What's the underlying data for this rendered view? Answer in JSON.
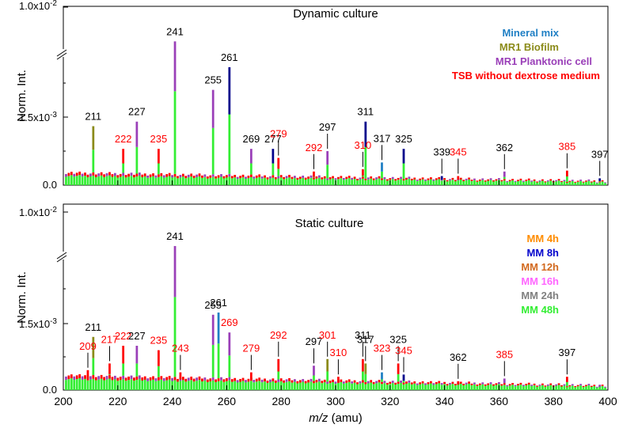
{
  "chart_data": [
    {
      "type": "bar",
      "title": "Dynamic culture",
      "xlabel_italic": "m/z",
      "xlabel_unit": " (amu)",
      "ylabel": "Norm. Int.",
      "xlim": [
        200,
        400
      ],
      "x_ticks": [
        "200",
        "220",
        "240",
        "260",
        "280",
        "300",
        "320",
        "340",
        "360",
        "380",
        "400"
      ],
      "y_ticks": [
        "0.0",
        "1.5x10",
        "1.0x10"
      ],
      "y_tick_exponents": [
        "",
        "-3",
        "-2"
      ],
      "legend": [
        {
          "label": "Mineral mix",
          "color": "#1f7fc4"
        },
        {
          "label": "MR1 Biofilm",
          "color": "#8b8b1a"
        },
        {
          "label": "MR1 Planktonic cell",
          "color": "#9a3fb8"
        },
        {
          "label": "TSB without dextrose medium",
          "color": "#ff0000"
        }
      ],
      "series_colors": [
        "#33ee33",
        "#ff0000",
        "#9a3fb8",
        "#8b8b1a",
        "#1f7fc4",
        "#00008b"
      ],
      "peaks": [
        {
          "mz": 211,
          "height": 0.0013,
          "seg": 3
        },
        {
          "mz": 222,
          "height": 0.0008,
          "seg": 1
        },
        {
          "mz": 227,
          "height": 0.0014,
          "seg": 2
        },
        {
          "mz": 235,
          "height": 0.0008,
          "seg": 1
        },
        {
          "mz": 241,
          "height": 0.00345,
          "seg": 2
        },
        {
          "mz": 255,
          "height": 0.0021,
          "seg": 2
        },
        {
          "mz": 261,
          "height": 0.0026,
          "seg": 5
        },
        {
          "mz": 269,
          "height": 0.0008,
          "seg": 2
        },
        {
          "mz": 277,
          "height": 0.0008,
          "seg": 5
        },
        {
          "mz": 279,
          "height": 0.0006,
          "seg": 1
        },
        {
          "mz": 292,
          "height": 0.0003,
          "seg": 1
        },
        {
          "mz": 297,
          "height": 0.00075,
          "seg": 2
        },
        {
          "mz": 310,
          "height": 0.00035,
          "seg": 1
        },
        {
          "mz": 311,
          "height": 0.0014,
          "seg": 5
        },
        {
          "mz": 317,
          "height": 0.0005,
          "seg": 4
        },
        {
          "mz": 325,
          "height": 0.0008,
          "seg": 5
        },
        {
          "mz": 339,
          "height": 0.0002,
          "seg": 5
        },
        {
          "mz": 345,
          "height": 0.0002,
          "seg": 1
        },
        {
          "mz": 362,
          "height": 0.0003,
          "seg": 2
        },
        {
          "mz": 385,
          "height": 0.00032,
          "seg": 1
        },
        {
          "mz": 397,
          "height": 0.00015,
          "seg": 5
        }
      ],
      "labels": [
        {
          "text": "211",
          "color": "black"
        },
        {
          "text": "222",
          "color": "red"
        },
        {
          "text": "227",
          "color": "black"
        },
        {
          "text": "235",
          "color": "red"
        },
        {
          "text": "241",
          "color": "black"
        },
        {
          "text": "255",
          "color": "black"
        },
        {
          "text": "261",
          "color": "black"
        },
        {
          "text": "269",
          "color": "black"
        },
        {
          "text": "277",
          "color": "black"
        },
        {
          "text": "279",
          "color": "red"
        },
        {
          "text": "292",
          "color": "red"
        },
        {
          "text": "297",
          "color": "black"
        },
        {
          "text": "310",
          "color": "red"
        },
        {
          "text": "311",
          "color": "black"
        },
        {
          "text": "317",
          "color": "black"
        },
        {
          "text": "325",
          "color": "black"
        },
        {
          "text": "339",
          "color": "black"
        },
        {
          "text": "345",
          "color": "red"
        },
        {
          "text": "362",
          "color": "black"
        },
        {
          "text": "385",
          "color": "red"
        },
        {
          "text": "397",
          "color": "black"
        }
      ]
    },
    {
      "type": "bar",
      "title": "Static culture",
      "xlabel_italic": "m/z",
      "xlabel_unit": " (amu)",
      "ylabel": "Norm. Int.",
      "xlim": [
        200,
        400
      ],
      "x_ticks": [
        "200",
        "220",
        "240",
        "260",
        "280",
        "300",
        "320",
        "340",
        "360",
        "380",
        "400"
      ],
      "y_ticks": [
        "0.0",
        "1.5x10",
        "1.0x10"
      ],
      "y_tick_exponents": [
        "",
        "-3",
        "-2"
      ],
      "legend": [
        {
          "label": "MM 4h",
          "color": "#ff8c00"
        },
        {
          "label": "MM 8h",
          "color": "#0000cc"
        },
        {
          "label": "MM 12h",
          "color": "#d2691e"
        },
        {
          "label": "MM 16h",
          "color": "#ff66ff"
        },
        {
          "label": "MM 24h",
          "color": "#808080"
        },
        {
          "label": "MM 48h",
          "color": "#33ee33"
        }
      ],
      "series_colors": [
        "#33ee33",
        "#ff0000",
        "#9a3fb8",
        "#8b8b1a",
        "#1f7fc4",
        "#00008b"
      ],
      "peaks": [
        {
          "mz": 209,
          "height": 0.00045,
          "seg": 1
        },
        {
          "mz": 211,
          "height": 0.0012,
          "seg": 3
        },
        {
          "mz": 217,
          "height": 0.0006,
          "seg": 1
        },
        {
          "mz": 222,
          "height": 0.001,
          "seg": 1
        },
        {
          "mz": 227,
          "height": 0.001,
          "seg": 2
        },
        {
          "mz": 235,
          "height": 0.0009,
          "seg": 1
        },
        {
          "mz": 241,
          "height": 0.0035,
          "seg": 2
        },
        {
          "mz": 243,
          "height": 0.0004,
          "seg": 1
        },
        {
          "mz": 255,
          "height": 0.0017,
          "seg": 2
        },
        {
          "mz": 257,
          "height": 0.00175,
          "seg": 4
        },
        {
          "mz": 261,
          "height": 0.0013,
          "seg": 2
        },
        {
          "mz": 269,
          "height": 0.0004,
          "seg": 1
        },
        {
          "mz": 279,
          "height": 0.0007,
          "seg": 1
        },
        {
          "mz": 292,
          "height": 0.00055,
          "seg": 2
        },
        {
          "mz": 297,
          "height": 0.0007,
          "seg": 3
        },
        {
          "mz": 301,
          "height": 0.0003,
          "seg": 1
        },
        {
          "mz": 310,
          "height": 0.0007,
          "seg": 1
        },
        {
          "mz": 311,
          "height": 0.0006,
          "seg": 3
        },
        {
          "mz": 317,
          "height": 0.0004,
          "seg": 4
        },
        {
          "mz": 323,
          "height": 0.0006,
          "seg": 1
        },
        {
          "mz": 325,
          "height": 0.00035,
          "seg": 5
        },
        {
          "mz": 345,
          "height": 0.0002,
          "seg": 1
        },
        {
          "mz": 362,
          "height": 0.00026,
          "seg": 2
        },
        {
          "mz": 385,
          "height": 0.0003,
          "seg": 1
        },
        {
          "mz": 397,
          "height": 0.00012,
          "seg": 2
        }
      ],
      "labels": [
        {
          "text": "209",
          "color": "red"
        },
        {
          "text": "211",
          "color": "black"
        },
        {
          "text": "217",
          "color": "red"
        },
        {
          "text": "222",
          "color": "red"
        },
        {
          "text": "227",
          "color": "black"
        },
        {
          "text": "235",
          "color": "red"
        },
        {
          "text": "241",
          "color": "black"
        },
        {
          "text": "243",
          "color": "red"
        },
        {
          "text": "255",
          "color": "black"
        },
        {
          "text": "261",
          "color": "black"
        },
        {
          "text": "269",
          "color": "red"
        },
        {
          "text": "279",
          "color": "red"
        },
        {
          "text": "292",
          "color": "red"
        },
        {
          "text": "297",
          "color": "black"
        },
        {
          "text": "301",
          "color": "red"
        },
        {
          "text": "310",
          "color": "red"
        },
        {
          "text": "311",
          "color": "black"
        },
        {
          "text": "317",
          "color": "black"
        },
        {
          "text": "323",
          "color": "red"
        },
        {
          "text": "325",
          "color": "black"
        },
        {
          "text": "345",
          "color": "red"
        },
        {
          "text": "362",
          "color": "black"
        },
        {
          "text": "385",
          "color": "red"
        },
        {
          "text": "397",
          "color": "black"
        }
      ]
    }
  ]
}
